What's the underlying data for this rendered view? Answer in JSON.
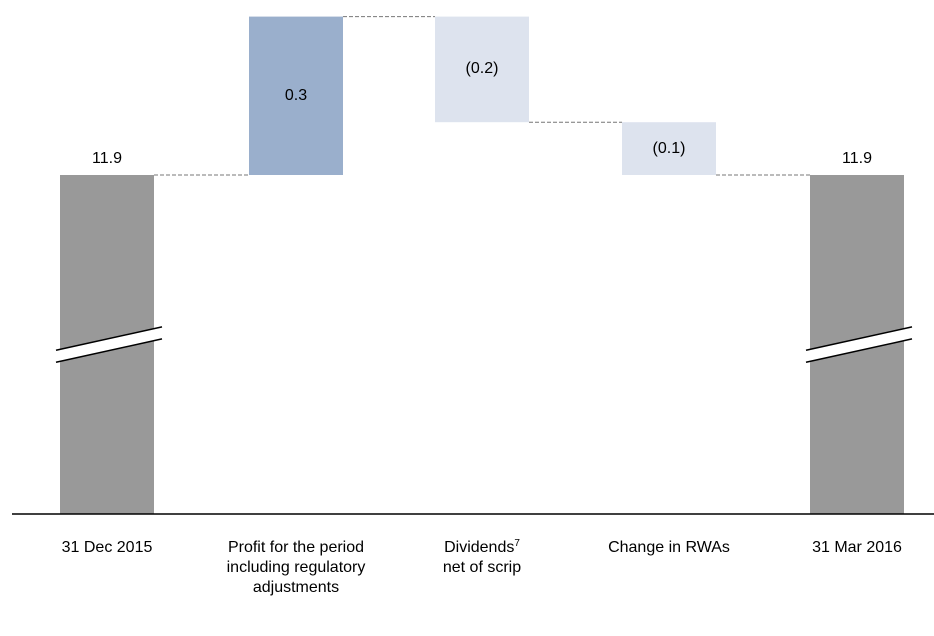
{
  "chart_data": {
    "type": "bar",
    "subtype": "waterfall",
    "categories": [
      {
        "main": "31 Dec 2015",
        "sup": ""
      },
      {
        "main": "Profit for the period including regulatory adjustments",
        "sup": ""
      },
      {
        "main": "Dividends",
        "sup": "7",
        "rest": "net of scrip"
      },
      {
        "main": "Change in RWAs",
        "sup": ""
      },
      {
        "main": "31 Mar 2016",
        "sup": ""
      }
    ],
    "values": [
      11.9,
      0.3,
      -0.2,
      -0.1,
      11.9
    ],
    "value_labels": [
      "11.9",
      "0.3",
      "(0.2)",
      "(0.1)",
      "11.9"
    ],
    "bar_kinds": [
      "total",
      "increase",
      "decrease",
      "decrease",
      "total"
    ],
    "axis_break": true,
    "colors": {
      "total": "#999999",
      "increase": "#9aafcc",
      "decrease": "#dde3ee",
      "connector": "#777777",
      "axis": "#000000",
      "break_line": "#ffffff"
    }
  }
}
